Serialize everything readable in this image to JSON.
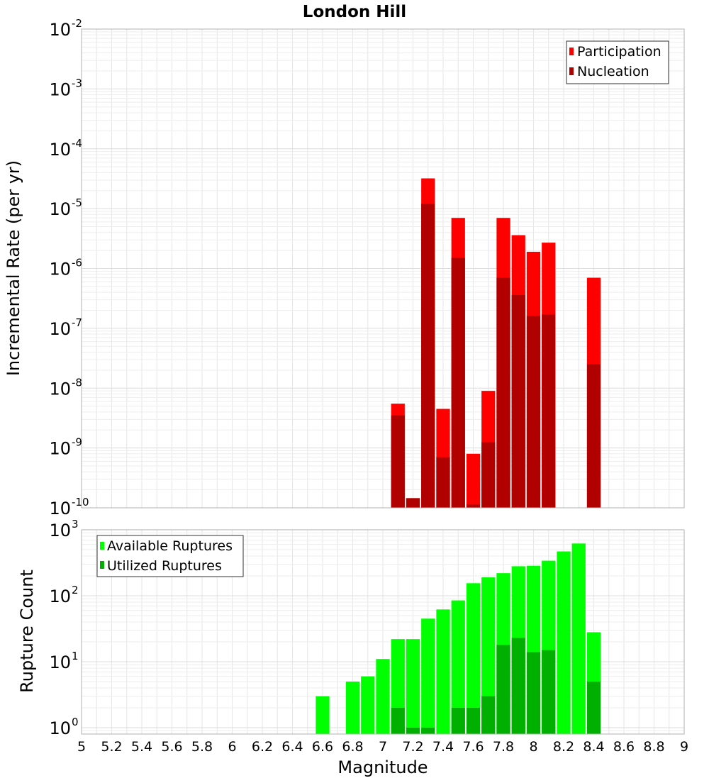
{
  "colors": {
    "participation": "#ff0000",
    "nucleation": "#b00000",
    "available": "#00ff00",
    "utilized": "#00b000",
    "grid": "#e6e6e6",
    "frame": "#b0b0b0"
  },
  "chart_data": [
    {
      "type": "bar",
      "title": "London Hill",
      "xlabel": "",
      "ylabel": "Incremental Rate (per yr)",
      "yscale": "log",
      "ylim": [
        1e-10,
        0.01
      ],
      "xlim": [
        5,
        9
      ],
      "bar_width": 0.1,
      "grid": true,
      "legend_position": "top-right",
      "y_ticks": [
        {
          "base": "10",
          "exp": "-10",
          "value": 1e-10
        },
        {
          "base": "10",
          "exp": "-9",
          "value": 1e-09
        },
        {
          "base": "10",
          "exp": "-8",
          "value": 1e-08
        },
        {
          "base": "10",
          "exp": "-7",
          "value": 1e-07
        },
        {
          "base": "10",
          "exp": "-6",
          "value": 1e-06
        },
        {
          "base": "10",
          "exp": "-5",
          "value": 1e-05
        },
        {
          "base": "10",
          "exp": "-4",
          "value": 0.0001
        },
        {
          "base": "10",
          "exp": "-3",
          "value": 0.001
        },
        {
          "base": "10",
          "exp": "-2",
          "value": 0.01
        }
      ],
      "series": [
        {
          "name": "Participation",
          "x": [
            7.1,
            7.2,
            7.3,
            7.4,
            7.5,
            7.6,
            7.7,
            7.8,
            7.9,
            8.0,
            8.1,
            8.4
          ],
          "values": [
            5.5e-09,
            1.45e-10,
            3.2e-05,
            4.5e-09,
            7e-06,
            8e-10,
            9e-09,
            7e-06,
            3.6e-06,
            1.9e-06,
            2.7e-06,
            7e-07
          ]
        },
        {
          "name": "Nucleation",
          "x": [
            7.1,
            7.2,
            7.3,
            7.4,
            7.5,
            7.6,
            7.7,
            7.8,
            7.9,
            8.0,
            8.1,
            8.4
          ],
          "values": [
            3.5e-09,
            1.45e-10,
            1.2e-05,
            7e-10,
            1.5e-06,
            1.15e-10,
            1.25e-09,
            7e-07,
            3.6e-07,
            1.6e-07,
            1.7e-07,
            2.5e-08
          ]
        }
      ]
    },
    {
      "type": "bar",
      "title": "",
      "xlabel": "Magnitude",
      "ylabel": "Rupture Count",
      "yscale": "log",
      "ylim": [
        0.8,
        1000
      ],
      "xlim": [
        5,
        9
      ],
      "bar_width": 0.1,
      "grid": true,
      "legend_position": "top-left",
      "x_ticks": [
        "5",
        "5.2",
        "5.4",
        "5.6",
        "5.8",
        "6",
        "6.2",
        "6.4",
        "6.6",
        "6.8",
        "7",
        "7.2",
        "7.4",
        "7.6",
        "7.8",
        "8",
        "8.2",
        "8.4",
        "8.6",
        "8.8",
        "9"
      ],
      "y_ticks": [
        {
          "base": "10",
          "exp": "0",
          "value": 1
        },
        {
          "base": "10",
          "exp": "1",
          "value": 10
        },
        {
          "base": "10",
          "exp": "2",
          "value": 100
        },
        {
          "base": "10",
          "exp": "3",
          "value": 1000
        }
      ],
      "series": [
        {
          "name": "Available Ruptures",
          "x": [
            6.6,
            6.8,
            6.9,
            7.0,
            7.1,
            7.2,
            7.3,
            7.4,
            7.5,
            7.6,
            7.7,
            7.8,
            7.9,
            8.0,
            8.1,
            8.2,
            8.3,
            8.4
          ],
          "values": [
            3,
            5,
            6,
            11,
            22,
            22,
            45,
            62,
            85,
            155,
            190,
            220,
            280,
            285,
            340,
            470,
            620,
            28
          ]
        },
        {
          "name": "Utilized Ruptures",
          "x": [
            7.1,
            7.2,
            7.3,
            7.5,
            7.6,
            7.7,
            7.8,
            7.9,
            8.0,
            8.1,
            8.4
          ],
          "values": [
            2,
            1,
            1,
            2,
            2,
            3,
            18,
            23,
            14,
            15,
            5
          ]
        }
      ]
    }
  ]
}
